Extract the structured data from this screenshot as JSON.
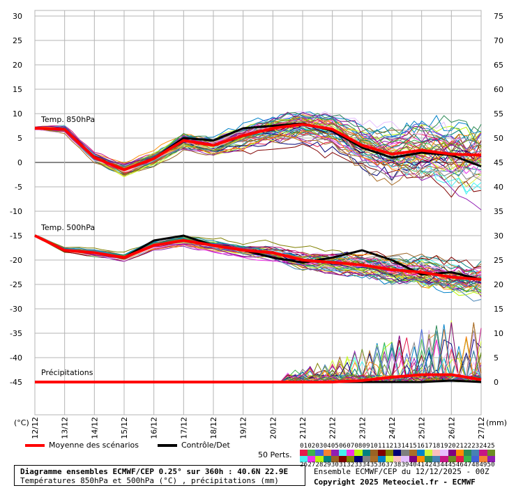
{
  "chart_data": {
    "type": "line",
    "left_axis_unit": "(°C)",
    "right_axis_unit": "(mm)",
    "left_ticks": [
      30,
      25,
      20,
      15,
      10,
      5,
      0,
      -5,
      -10,
      -15,
      -20,
      -25,
      -30,
      -35,
      -40,
      -45
    ],
    "right_ticks": [
      75,
      70,
      65,
      60,
      55,
      50,
      45,
      40,
      35,
      30,
      25,
      20,
      15,
      10,
      5,
      0
    ],
    "x_labels": [
      "12/12",
      "13/12",
      "14/12",
      "15/12",
      "16/12",
      "17/12",
      "18/12",
      "19/12",
      "20/12",
      "21/12",
      "22/12",
      "23/12",
      "24/12",
      "25/12",
      "26/12",
      "27/12"
    ],
    "panel_labels": {
      "t850": "Temp. 850hPa",
      "t500": "Temp. 500hPa",
      "precip": "Précipitations"
    },
    "t850_mean": [
      7,
      6.8,
      1,
      -1.5,
      0.8,
      4.5,
      3.5,
      5.5,
      7,
      7.8,
      6.8,
      3.5,
      1.7,
      2.5,
      1.7,
      1.5
    ],
    "t850_control": [
      7,
      6.8,
      1,
      -1.5,
      0.8,
      5,
      4.5,
      7,
      7.5,
      8,
      6.5,
      3,
      1,
      2,
      1.5,
      -0.8
    ],
    "t500_mean": [
      -15,
      -18,
      -18.5,
      -19.5,
      -17,
      -16,
      -17,
      -18,
      -18.5,
      -20,
      -20.5,
      -21,
      -22,
      -22.5,
      -23.5,
      -24
    ],
    "t500_control": [
      -15,
      -18,
      -18.5,
      -19.5,
      -16,
      -15,
      -17,
      -18,
      -19.5,
      -20.5,
      -19.5,
      -18,
      -20,
      -23,
      -22.5,
      -24
    ],
    "precip_mean_mm": [
      0,
      0,
      0,
      0,
      0,
      0,
      0,
      0,
      0,
      0,
      0,
      0.3,
      1,
      1.5,
      1.5,
      0.5
    ],
    "precip_control_mm": [
      0,
      0,
      0,
      0,
      0,
      0,
      0,
      0,
      0,
      0,
      0,
      0,
      0,
      0,
      0.3,
      0
    ],
    "member_count": 50,
    "colors": {
      "mean": "#ff0000",
      "control": "#000000",
      "grid": "#b4b4b4",
      "zero_line": "#888888"
    }
  },
  "legend": {
    "mean_label": "Moyenne des scénarios",
    "control_label": "Contrôle/Det",
    "perts_label": "50 Perts.",
    "pert_numbers_row1": [
      "01",
      "02",
      "03",
      "04",
      "05",
      "06",
      "07",
      "08",
      "09",
      "10",
      "11",
      "12",
      "13",
      "14",
      "15",
      "16",
      "17",
      "18",
      "19",
      "20",
      "21",
      "22",
      "23",
      "24",
      "25"
    ],
    "pert_numbers_row2": [
      "26",
      "27",
      "28",
      "29",
      "30",
      "31",
      "32",
      "33",
      "34",
      "35",
      "36",
      "37",
      "38",
      "39",
      "40",
      "41",
      "42",
      "43",
      "44",
      "45",
      "46",
      "47",
      "48",
      "49",
      "50"
    ]
  },
  "footer": {
    "title": "Diagramme ensembles ECMWF/CEP 0.25° sur 360h : 40.6N 22.9E",
    "subtitle": "Températures 850hPa et 500hPa (°C) , précipitations (mm)",
    "run_info": "Ensemble ECMWF/CEP du 12/12/2025 - 00Z",
    "copyright": "Copyright 2025 Meteociel.fr - ECMWF"
  }
}
